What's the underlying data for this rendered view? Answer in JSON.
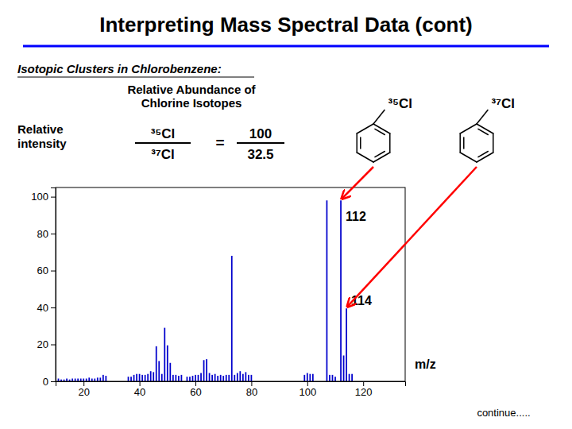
{
  "chart_data": {
    "type": "bar",
    "title": "Interpreting Mass Spectral Data (cont)",
    "subtitle": "Isotopic Clusters in Chlorobenzene:",
    "x_label": "m/z",
    "x": [
      11,
      12,
      13,
      14,
      15,
      16,
      17,
      18,
      19,
      20,
      21,
      22,
      23,
      24,
      25,
      26,
      27,
      28,
      36,
      37,
      38,
      39,
      40,
      41,
      42,
      43,
      44,
      45,
      46,
      47,
      48,
      49,
      50,
      51,
      52,
      53,
      54,
      55,
      57,
      58,
      59,
      60,
      61,
      62,
      63,
      64,
      65,
      66,
      67,
      68,
      69,
      70,
      71,
      72,
      73,
      74,
      75,
      76,
      77,
      78,
      79,
      80,
      99,
      100,
      101,
      102,
      107,
      108,
      109,
      110,
      112,
      113,
      114,
      115,
      116
    ],
    "values": [
      1.5,
      1.0,
      1.0,
      1.5,
      1.0,
      1.5,
      1.5,
      1.5,
      1.5,
      1.5,
      1.5,
      2.0,
      1.5,
      1.5,
      2.0,
      2.0,
      3.5,
      3.0,
      2.5,
      2.5,
      3.5,
      4.0,
      4.0,
      3.5,
      3.5,
      4.0,
      5.5,
      5.0,
      19.0,
      11.0,
      4.0,
      29.0,
      19.5,
      10.0,
      3.5,
      3.5,
      3.0,
      3.5,
      2.5,
      2.5,
      3.0,
      3.5,
      3.5,
      4.5,
      11.5,
      12.0,
      4.5,
      3.5,
      4.0,
      3.0,
      3.5,
      3.0,
      3.5,
      3.5,
      68.0,
      3.5,
      4.5,
      5.5,
      4.0,
      5.0,
      3.5,
      3.5,
      3.5,
      4.5,
      4.0,
      4.0,
      98.0,
      3.5,
      3.5,
      2.5,
      98.0,
      14.0,
      39.5,
      4.0,
      4.0
    ],
    "color": "#0000cc",
    "xlim": [
      10,
      135
    ],
    "ylim": [
      0,
      105
    ],
    "xticks": [
      20,
      40,
      60,
      80,
      100,
      120
    ],
    "yticks": [
      0,
      20,
      40,
      60,
      80,
      100
    ],
    "annotations": [
      {
        "text": "112",
        "x": 112,
        "y": 98
      },
      {
        "text": "114",
        "x": 114,
        "y": 39.5
      },
      {
        "text": "Relative Abundance of\nChlorine Isotopes"
      },
      {
        "text": "Relative\nintensity"
      },
      {
        "text": "³⁵Cl"
      },
      {
        "text": "³⁷Cl"
      },
      {
        "text": "="
      },
      {
        "text": "100"
      },
      {
        "text": "32.5"
      },
      {
        "text": "continue....."
      }
    ]
  }
}
